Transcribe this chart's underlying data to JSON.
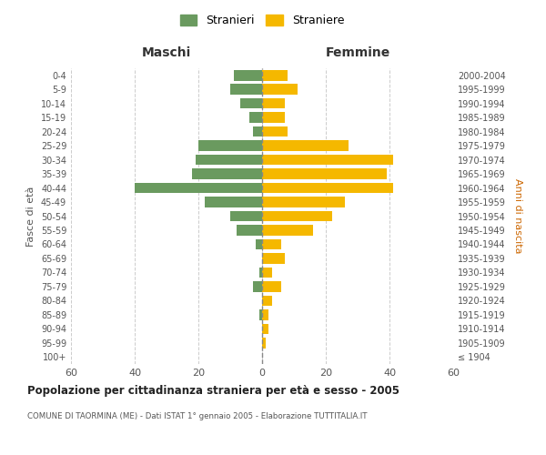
{
  "age_groups": [
    "100+",
    "95-99",
    "90-94",
    "85-89",
    "80-84",
    "75-79",
    "70-74",
    "65-69",
    "60-64",
    "55-59",
    "50-54",
    "45-49",
    "40-44",
    "35-39",
    "30-34",
    "25-29",
    "20-24",
    "15-19",
    "10-14",
    "5-9",
    "0-4"
  ],
  "birth_years": [
    "≤ 1904",
    "1905-1909",
    "1910-1914",
    "1915-1919",
    "1920-1924",
    "1925-1929",
    "1930-1934",
    "1935-1939",
    "1940-1944",
    "1945-1949",
    "1950-1954",
    "1955-1959",
    "1960-1964",
    "1965-1969",
    "1970-1974",
    "1975-1979",
    "1980-1984",
    "1985-1989",
    "1990-1994",
    "1995-1999",
    "2000-2004"
  ],
  "maschi": [
    0,
    0,
    0,
    1,
    0,
    3,
    1,
    0,
    2,
    8,
    10,
    18,
    40,
    22,
    21,
    20,
    3,
    4,
    7,
    10,
    9
  ],
  "femmine": [
    0,
    1,
    2,
    2,
    3,
    6,
    3,
    7,
    6,
    16,
    22,
    26,
    41,
    39,
    41,
    27,
    8,
    7,
    7,
    11,
    8
  ],
  "color_maschi": "#6a9a5f",
  "color_femmine": "#f5b800",
  "title": "Popolazione per cittadinanza straniera per età e sesso - 2005",
  "subtitle": "COMUNE DI TAORMINA (ME) - Dati ISTAT 1° gennaio 2005 - Elaborazione TUTTITALIA.IT",
  "xlabel_left": "Maschi",
  "xlabel_right": "Femmine",
  "ylabel_left": "Fasce di età",
  "ylabel_right": "Anni di nascita",
  "legend_maschi": "Stranieri",
  "legend_femmine": "Straniere",
  "xlim": 60,
  "background_color": "#ffffff",
  "grid_color": "#cccccc"
}
